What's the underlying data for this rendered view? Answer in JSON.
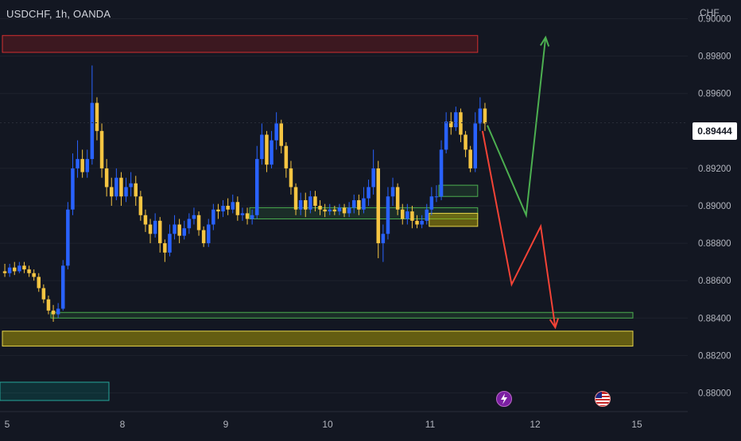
{
  "header": {
    "title": "USDCHF, 1h, OANDA",
    "currency": "CHF"
  },
  "price_axis": {
    "labels": [
      "0.90000",
      "0.89800",
      "0.89600",
      "0.89200",
      "0.89000",
      "0.88800",
      "0.88600",
      "0.88400",
      "0.88200",
      "0.88000"
    ],
    "current_price": "0.89444"
  },
  "time_axis": {
    "labels": [
      "5",
      "8",
      "9",
      "10",
      "11",
      "12",
      "15"
    ]
  },
  "colors": {
    "background": "#131722",
    "bull_candle": "#2962ff",
    "bear_candle": "#f5c542",
    "green_arrow": "#4caf50",
    "red_arrow": "#f44336",
    "resistance_zone": "#b71c1c",
    "support_zone": "#c8b400"
  },
  "icons": {
    "event_lightning": "lightning-icon",
    "event_flag": "us-flag-icon"
  },
  "chart_data": {
    "type": "candlestick",
    "symbol": "USDCHF",
    "timeframe": "1h",
    "source": "OANDA",
    "ylim": [
      0.879,
      0.901
    ],
    "current_price": 0.89444,
    "yticks": [
      0.9,
      0.898,
      0.896,
      0.892,
      0.89,
      0.888,
      0.886,
      0.884,
      0.882,
      0.88
    ],
    "xticks": [
      "5",
      "8",
      "9",
      "10",
      "11",
      "12",
      "15"
    ],
    "candles": [
      [
        0.8865,
        0.8864,
        0.8869,
        0.8862
      ],
      [
        0.8864,
        0.8867,
        0.8869,
        0.8862
      ],
      [
        0.8867,
        0.8865,
        0.887,
        0.8863
      ],
      [
        0.8865,
        0.8868,
        0.887,
        0.8864
      ],
      [
        0.8868,
        0.8866,
        0.887,
        0.8864
      ],
      [
        0.8866,
        0.8864,
        0.8868,
        0.8862
      ],
      [
        0.8864,
        0.8862,
        0.8866,
        0.886
      ],
      [
        0.8862,
        0.8856,
        0.8864,
        0.8854
      ],
      [
        0.8856,
        0.885,
        0.8858,
        0.8848
      ],
      [
        0.885,
        0.8844,
        0.8852,
        0.8842
      ],
      [
        0.8844,
        0.8842,
        0.8847,
        0.8838
      ],
      [
        0.8842,
        0.8845,
        0.8848,
        0.884
      ],
      [
        0.8845,
        0.8868,
        0.8871,
        0.8844
      ],
      [
        0.8868,
        0.8898,
        0.8902,
        0.8866
      ],
      [
        0.8898,
        0.892,
        0.8928,
        0.8895
      ],
      [
        0.892,
        0.8925,
        0.8935,
        0.8915
      ],
      [
        0.8925,
        0.8918,
        0.893,
        0.8915
      ],
      [
        0.8918,
        0.8925,
        0.893,
        0.8915
      ],
      [
        0.8925,
        0.8955,
        0.8975,
        0.8922
      ],
      [
        0.8955,
        0.894,
        0.8958,
        0.8935
      ],
      [
        0.894,
        0.892,
        0.8944,
        0.8915
      ],
      [
        0.892,
        0.891,
        0.8925,
        0.8905
      ],
      [
        0.891,
        0.8905,
        0.8915,
        0.89
      ],
      [
        0.8905,
        0.8915,
        0.892,
        0.8903
      ],
      [
        0.8915,
        0.8905,
        0.8918,
        0.89
      ],
      [
        0.8905,
        0.891,
        0.8915,
        0.8902
      ],
      [
        0.891,
        0.8912,
        0.8918,
        0.8905
      ],
      [
        0.8912,
        0.8905,
        0.8916,
        0.89
      ],
      [
        0.8905,
        0.8895,
        0.8908,
        0.8892
      ],
      [
        0.8895,
        0.889,
        0.8898,
        0.8886
      ],
      [
        0.889,
        0.8885,
        0.8893,
        0.888
      ],
      [
        0.8885,
        0.8892,
        0.8896,
        0.8883
      ],
      [
        0.8892,
        0.888,
        0.8894,
        0.8875
      ],
      [
        0.888,
        0.8875,
        0.8882,
        0.887
      ],
      [
        0.8875,
        0.8885,
        0.889,
        0.8873
      ],
      [
        0.8885,
        0.889,
        0.8895,
        0.8882
      ],
      [
        0.889,
        0.8884,
        0.8893,
        0.888
      ],
      [
        0.8884,
        0.8888,
        0.8892,
        0.8882
      ],
      [
        0.8888,
        0.8893,
        0.8896,
        0.8885
      ],
      [
        0.8893,
        0.8895,
        0.8899,
        0.889
      ],
      [
        0.8895,
        0.8887,
        0.8897,
        0.8884
      ],
      [
        0.8887,
        0.888,
        0.8889,
        0.8878
      ],
      [
        0.888,
        0.889,
        0.8893,
        0.8878
      ],
      [
        0.889,
        0.8898,
        0.8901,
        0.8887
      ],
      [
        0.8898,
        0.8897,
        0.8901,
        0.8893
      ],
      [
        0.8897,
        0.89,
        0.8903,
        0.8894
      ],
      [
        0.89,
        0.8898,
        0.8904,
        0.8895
      ],
      [
        0.8898,
        0.8902,
        0.8906,
        0.8896
      ],
      [
        0.8902,
        0.8895,
        0.8905,
        0.8892
      ],
      [
        0.8895,
        0.8896,
        0.8899,
        0.8892
      ],
      [
        0.8896,
        0.8893,
        0.8899,
        0.889
      ],
      [
        0.8893,
        0.8895,
        0.8898,
        0.889
      ],
      [
        0.8895,
        0.8925,
        0.8932,
        0.8893
      ],
      [
        0.8925,
        0.8938,
        0.8944,
        0.8922
      ],
      [
        0.8938,
        0.8922,
        0.894,
        0.8918
      ],
      [
        0.8922,
        0.8935,
        0.894,
        0.892
      ],
      [
        0.8935,
        0.8944,
        0.895,
        0.893
      ],
      [
        0.8944,
        0.8932,
        0.8946,
        0.8928
      ],
      [
        0.8932,
        0.892,
        0.8934,
        0.8915
      ],
      [
        0.892,
        0.891,
        0.8924,
        0.8906
      ],
      [
        0.891,
        0.8898,
        0.8912,
        0.8895
      ],
      [
        0.8898,
        0.8903,
        0.8907,
        0.8895
      ],
      [
        0.8903,
        0.8898,
        0.8907,
        0.8894
      ],
      [
        0.8898,
        0.8905,
        0.8908,
        0.8896
      ],
      [
        0.8905,
        0.89,
        0.8908,
        0.8897
      ],
      [
        0.89,
        0.8898,
        0.8903,
        0.8895
      ],
      [
        0.8898,
        0.8897,
        0.8901,
        0.8894
      ],
      [
        0.8897,
        0.8898,
        0.8901,
        0.8895
      ],
      [
        0.8898,
        0.8897,
        0.89,
        0.8895
      ],
      [
        0.8897,
        0.8899,
        0.8901,
        0.8895
      ],
      [
        0.8899,
        0.8896,
        0.8901,
        0.8894
      ],
      [
        0.8896,
        0.8899,
        0.8902,
        0.8894
      ],
      [
        0.8899,
        0.8903,
        0.8906,
        0.8896
      ],
      [
        0.8903,
        0.8898,
        0.8906,
        0.8895
      ],
      [
        0.8898,
        0.8904,
        0.891,
        0.8896
      ],
      [
        0.8904,
        0.891,
        0.8914,
        0.89
      ],
      [
        0.891,
        0.892,
        0.893,
        0.8906
      ],
      [
        0.892,
        0.888,
        0.8924,
        0.8872
      ],
      [
        0.888,
        0.8885,
        0.889,
        0.887
      ],
      [
        0.8885,
        0.8905,
        0.891,
        0.8882
      ],
      [
        0.8905,
        0.891,
        0.8915,
        0.89
      ],
      [
        0.891,
        0.8898,
        0.8912,
        0.8895
      ],
      [
        0.8898,
        0.8893,
        0.8901,
        0.889
      ],
      [
        0.8893,
        0.8897,
        0.8901,
        0.889
      ],
      [
        0.8897,
        0.8892,
        0.89,
        0.8888
      ],
      [
        0.8892,
        0.889,
        0.8895,
        0.8888
      ],
      [
        0.889,
        0.8892,
        0.8895,
        0.8888
      ],
      [
        0.8892,
        0.8898,
        0.8901,
        0.889
      ],
      [
        0.8898,
        0.8905,
        0.891,
        0.8895
      ],
      [
        0.8905,
        0.8905,
        0.8911,
        0.8902
      ],
      [
        0.8905,
        0.893,
        0.8935,
        0.8903
      ],
      [
        0.893,
        0.8945,
        0.895,
        0.8928
      ],
      [
        0.8945,
        0.8942,
        0.895,
        0.8938
      ],
      [
        0.8942,
        0.895,
        0.8953,
        0.894
      ],
      [
        0.895,
        0.8938,
        0.8952,
        0.8934
      ],
      [
        0.8938,
        0.893,
        0.894,
        0.8926
      ],
      [
        0.893,
        0.892,
        0.8932,
        0.8918
      ],
      [
        0.892,
        0.8944,
        0.895,
        0.8918
      ],
      [
        0.8944,
        0.8952,
        0.8958,
        0.894
      ],
      [
        0.8952,
        0.8944,
        0.8955,
        0.894
      ]
    ],
    "zones": [
      {
        "kind": "resistance",
        "ymin": 0.8982,
        "ymax": 0.8991,
        "x_from_candle": 0,
        "x_to_candle": 98
      },
      {
        "kind": "support-green",
        "ymin": 0.8893,
        "ymax": 0.8899,
        "x_from_candle": 51,
        "x_to_candle": 98
      },
      {
        "kind": "support-green",
        "ymin": 0.8905,
        "ymax": 0.8911,
        "x_from_candle": 90,
        "x_to_candle": 98
      },
      {
        "kind": "support-yellow",
        "ymin": 0.8889,
        "ymax": 0.8896,
        "x_from_candle": 88,
        "x_to_candle": 98
      },
      {
        "kind": "support-green",
        "ymin": 0.884,
        "ymax": 0.8843,
        "x_from_candle": 10,
        "x_to_candle": 130
      },
      {
        "kind": "support-yellow",
        "ymin": 0.8825,
        "ymax": 0.8833,
        "x_from_candle": 0,
        "x_to_candle": 130
      }
    ],
    "projections": [
      {
        "kind": "bullish",
        "points": [
          [
            100,
            0.8943
          ],
          [
            108,
            0.8895
          ],
          [
            112,
            0.899
          ]
        ]
      },
      {
        "kind": "bearish",
        "points": [
          [
            99,
            0.894
          ],
          [
            105,
            0.8858
          ],
          [
            111,
            0.8889
          ],
          [
            114,
            0.8835
          ]
        ]
      }
    ]
  }
}
